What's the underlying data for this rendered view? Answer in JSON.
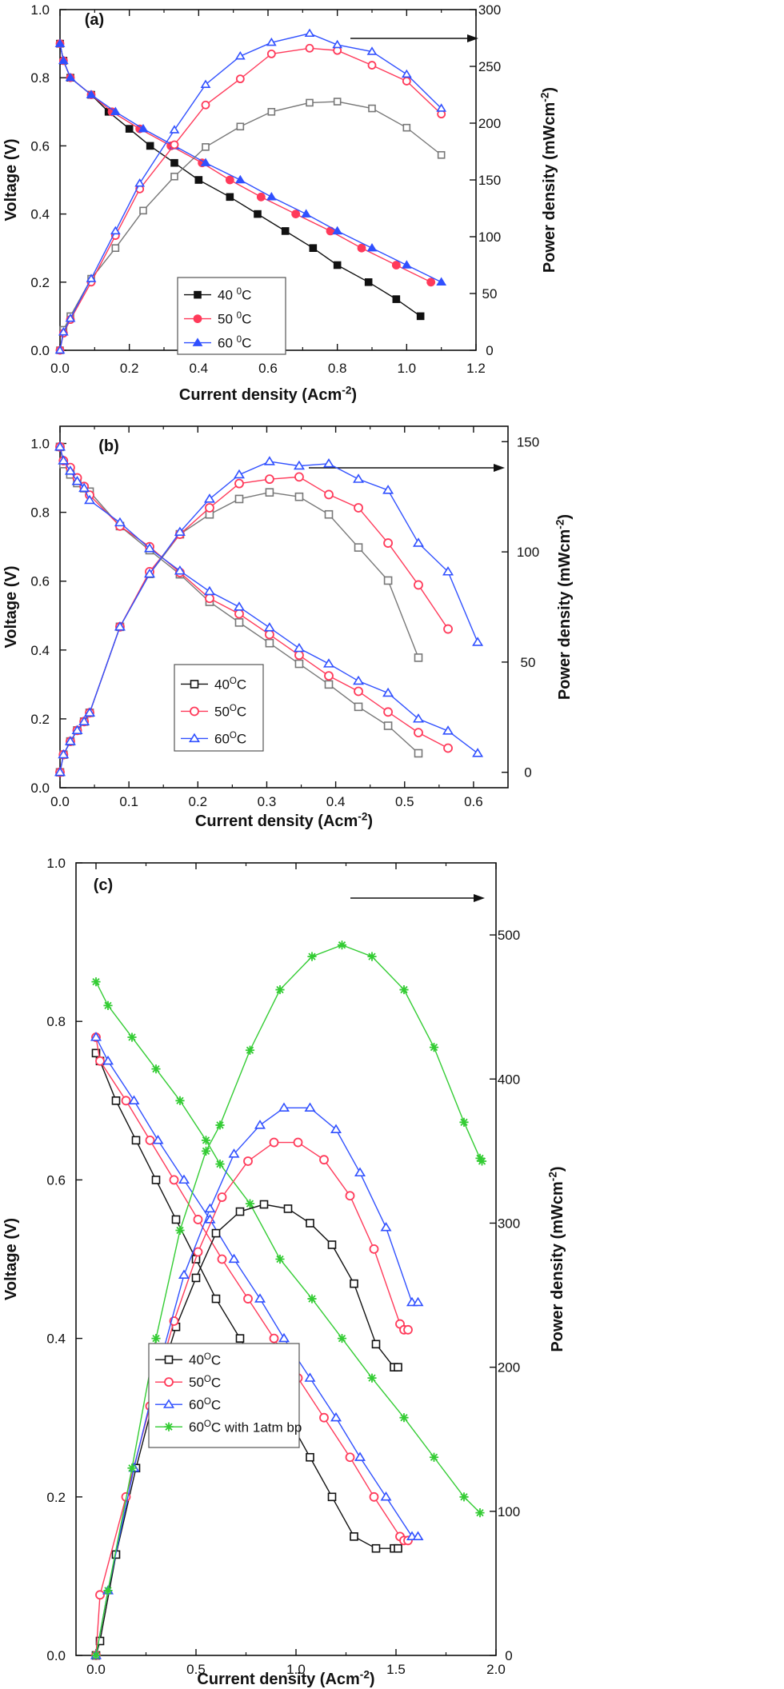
{
  "chart_data": [
    {
      "panel": "(a)",
      "type": "line",
      "xlabel": "Current density (Acm",
      "xlabel_sup": "-2",
      "xlabel_tail": ")",
      "ylabel_left": "Voltage (V)",
      "ylabel_right": "Power density (mWcm",
      "ylabel_right_sup": "-2",
      "ylabel_right_tail": ")",
      "xlim": [
        0,
        1.2
      ],
      "xticks": [
        "0.0",
        "0.2",
        "0.4",
        "0.6",
        "0.8",
        "1.0",
        "1.2"
      ],
      "ylim_left": [
        0,
        1.0
      ],
      "yticks_left": [
        "0.0",
        "0.2",
        "0.4",
        "0.6",
        "0.8",
        "1.0"
      ],
      "ylim_right": [
        0,
        300
      ],
      "yticks_right": [
        "0",
        "50",
        "100",
        "150",
        "200",
        "250",
        "300"
      ],
      "legend": [
        {
          "label": "40 ",
          "sup": "0",
          "tail": "C",
          "color": "#111111",
          "marker": "square-filled"
        },
        {
          "label": "50 ",
          "sup": "0",
          "tail": "C",
          "color": "#ff3a5a",
          "marker": "circle-filled"
        },
        {
          "label": "60 ",
          "sup": "0",
          "tail": "C",
          "color": "#3050ff",
          "marker": "triangle-filled"
        }
      ],
      "series": [
        {
          "name": "40 0C voltage",
          "axis": "left",
          "color": "#111111",
          "marker": "square-filled",
          "x": [
            0,
            0.01,
            0.03,
            0.09,
            0.14,
            0.2,
            0.26,
            0.33,
            0.4,
            0.49,
            0.57,
            0.65,
            0.73,
            0.8,
            0.89,
            0.97,
            1.04
          ],
          "y": [
            0.9,
            0.85,
            0.8,
            0.75,
            0.7,
            0.65,
            0.6,
            0.55,
            0.5,
            0.45,
            0.4,
            0.35,
            0.3,
            0.25,
            0.2,
            0.15,
            0.1
          ]
        },
        {
          "name": "50 0C voltage",
          "axis": "left",
          "color": "#ff3a5a",
          "marker": "circle-filled",
          "x": [
            0,
            0.01,
            0.03,
            0.09,
            0.15,
            0.23,
            0.32,
            0.41,
            0.49,
            0.58,
            0.68,
            0.78,
            0.87,
            0.97,
            1.07
          ],
          "y": [
            0.9,
            0.85,
            0.8,
            0.75,
            0.7,
            0.65,
            0.6,
            0.55,
            0.5,
            0.45,
            0.4,
            0.35,
            0.3,
            0.25,
            0.2
          ]
        },
        {
          "name": "60 0C voltage",
          "axis": "left",
          "color": "#3050ff",
          "marker": "triangle-filled",
          "x": [
            0,
            0.01,
            0.03,
            0.09,
            0.16,
            0.24,
            0.33,
            0.42,
            0.52,
            0.61,
            0.71,
            0.8,
            0.9,
            1.0,
            1.1
          ],
          "y": [
            0.9,
            0.85,
            0.8,
            0.75,
            0.7,
            0.65,
            0.6,
            0.55,
            0.5,
            0.45,
            0.4,
            0.35,
            0.3,
            0.25,
            0.2
          ]
        },
        {
          "name": "40 0C power",
          "axis": "right",
          "color": "#777777",
          "marker": "square-open",
          "x": [
            0,
            0.01,
            0.03,
            0.09,
            0.16,
            0.24,
            0.33,
            0.42,
            0.52,
            0.61,
            0.72,
            0.8,
            0.9,
            1.0,
            1.1
          ],
          "y": [
            0,
            18,
            30,
            63,
            90,
            123,
            153,
            179,
            197,
            210,
            218,
            219,
            213,
            196,
            172
          ]
        },
        {
          "name": "50 0C power",
          "axis": "right",
          "color": "#ff3a5a",
          "marker": "circle-open",
          "x": [
            0,
            0.01,
            0.03,
            0.09,
            0.16,
            0.23,
            0.33,
            0.42,
            0.52,
            0.61,
            0.72,
            0.8,
            0.9,
            1.0,
            1.1
          ],
          "y": [
            0,
            15,
            27,
            60,
            101,
            142,
            181,
            216,
            239,
            261,
            266,
            264,
            251,
            237,
            208
          ]
        },
        {
          "name": "60 0C power",
          "axis": "right",
          "color": "#3050ff",
          "marker": "triangle-open",
          "x": [
            0,
            0.01,
            0.03,
            0.09,
            0.16,
            0.23,
            0.33,
            0.42,
            0.52,
            0.61,
            0.72,
            0.8,
            0.9,
            1.0,
            1.1
          ],
          "y": [
            0,
            16,
            28,
            63,
            105,
            147,
            194,
            234,
            259,
            271,
            279,
            269,
            263,
            243,
            213
          ]
        }
      ]
    },
    {
      "panel": "(b)",
      "type": "line",
      "xlabel": "Current density (Acm",
      "xlabel_sup": "-2",
      "xlabel_tail": ")",
      "ylabel_left": "Voltage (V)",
      "ylabel_right": "Power density (mWcm",
      "ylabel_right_sup": "-2",
      "ylabel_right_tail": ")",
      "xlim": [
        0,
        0.65
      ],
      "xticks": [
        "0.0",
        "0.1",
        "0.2",
        "0.3",
        "0.4",
        "0.5",
        "0.6"
      ],
      "ylim_left": [
        0,
        1.05
      ],
      "yticks_left": [
        "0.0",
        "0.2",
        "0.4",
        "0.6",
        "0.8",
        "1.0"
      ],
      "ylim_right": [
        -7,
        157
      ],
      "yticks_right": [
        "0",
        "50",
        "100",
        "150"
      ],
      "legend": [
        {
          "label": "40",
          "sup": "O",
          "tail": "C",
          "color": "#111111",
          "marker": "square-open"
        },
        {
          "label": "50",
          "sup": "O",
          "tail": "C",
          "color": "#ff3a5a",
          "marker": "circle-open"
        },
        {
          "label": "60",
          "sup": "O",
          "tail": "C",
          "color": "#3050ff",
          "marker": "triangle-open"
        }
      ],
      "series": [
        {
          "name": "40 OC voltage",
          "axis": "left",
          "color": "#777777",
          "marker": "square-open",
          "x": [
            0,
            0.005,
            0.015,
            0.025,
            0.035,
            0.043,
            0.087,
            0.13,
            0.174,
            0.217,
            0.26,
            0.304,
            0.347,
            0.39,
            0.433,
            0.476,
            0.52
          ],
          "y": [
            0.99,
            0.94,
            0.91,
            0.885,
            0.87,
            0.86,
            0.76,
            0.69,
            0.62,
            0.54,
            0.48,
            0.42,
            0.36,
            0.3,
            0.235,
            0.18,
            0.1
          ]
        },
        {
          "name": "50 OC voltage",
          "axis": "left",
          "color": "#ff3a5a",
          "marker": "circle-open",
          "x": [
            0,
            0.005,
            0.015,
            0.025,
            0.035,
            0.043,
            0.087,
            0.13,
            0.174,
            0.217,
            0.26,
            0.304,
            0.347,
            0.39,
            0.433,
            0.476,
            0.52,
            0.563
          ],
          "y": [
            0.99,
            0.95,
            0.93,
            0.9,
            0.875,
            0.85,
            0.76,
            0.7,
            0.625,
            0.55,
            0.505,
            0.445,
            0.385,
            0.325,
            0.28,
            0.22,
            0.16,
            0.115
          ]
        },
        {
          "name": "60 OC voltage",
          "axis": "left",
          "color": "#3050ff",
          "marker": "triangle-open",
          "x": [
            0,
            0.005,
            0.015,
            0.025,
            0.035,
            0.043,
            0.087,
            0.13,
            0.174,
            0.217,
            0.26,
            0.304,
            0.347,
            0.39,
            0.433,
            0.476,
            0.52,
            0.563,
            0.606
          ],
          "y": [
            0.99,
            0.95,
            0.92,
            0.89,
            0.87,
            0.835,
            0.77,
            0.695,
            0.63,
            0.57,
            0.525,
            0.465,
            0.405,
            0.36,
            0.31,
            0.275,
            0.2,
            0.165,
            0.1
          ]
        },
        {
          "name": "40 OC power",
          "axis": "right",
          "color": "#777777",
          "marker": "square-open",
          "x": [
            0,
            0.005,
            0.015,
            0.025,
            0.035,
            0.043,
            0.087,
            0.13,
            0.174,
            0.217,
            0.26,
            0.304,
            0.347,
            0.39,
            0.433,
            0.476,
            0.52
          ],
          "y": [
            0,
            8,
            14,
            19,
            23,
            27,
            66,
            90,
            108,
            117,
            124,
            127,
            125,
            117,
            102,
            87,
            52
          ]
        },
        {
          "name": "50 OC power",
          "axis": "right",
          "color": "#ff3a5a",
          "marker": "circle-open",
          "x": [
            0,
            0.005,
            0.015,
            0.025,
            0.035,
            0.043,
            0.087,
            0.13,
            0.174,
            0.217,
            0.26,
            0.304,
            0.347,
            0.39,
            0.433,
            0.476,
            0.52,
            0.563
          ],
          "y": [
            0,
            8,
            14,
            19,
            23,
            27,
            66,
            91,
            108,
            120,
            131,
            133,
            134,
            126,
            120,
            104,
            85,
            65
          ]
        },
        {
          "name": "60 OC power",
          "axis": "right",
          "color": "#3050ff",
          "marker": "triangle-open",
          "x": [
            0,
            0.005,
            0.015,
            0.025,
            0.035,
            0.043,
            0.087,
            0.13,
            0.174,
            0.217,
            0.26,
            0.304,
            0.347,
            0.39,
            0.433,
            0.476,
            0.52,
            0.563,
            0.606
          ],
          "y": [
            0,
            8,
            14,
            19,
            23,
            27,
            66,
            90,
            109,
            124,
            135,
            141,
            139,
            140,
            133,
            128,
            104,
            91,
            59
          ]
        }
      ]
    },
    {
      "panel": "(c)",
      "type": "line",
      "xlabel": "Current density (Acm",
      "xlabel_sup": "-2",
      "xlabel_tail": ")",
      "ylabel_left": "Voltage (V)",
      "ylabel_right": "Power density (mWcm",
      "ylabel_right_sup": "-2",
      "ylabel_right_tail": ")",
      "xlim": [
        -0.1,
        2.0
      ],
      "xticks": [
        "0.0",
        "0.5",
        "1.0",
        "1.5",
        "2.0"
      ],
      "ylim_left": [
        0,
        1.0
      ],
      "yticks_left": [
        "0.0",
        "0.2",
        "0.4",
        "0.6",
        "0.8",
        "1.0"
      ],
      "ylim_right": [
        0,
        550
      ],
      "yticks_right": [
        "0",
        "100",
        "200",
        "300",
        "400",
        "500"
      ],
      "legend": [
        {
          "label": "40",
          "sup": "O",
          "tail": "C",
          "color": "#111111",
          "marker": "square-open"
        },
        {
          "label": "50",
          "sup": "O",
          "tail": "C",
          "color": "#ff3a5a",
          "marker": "circle-open"
        },
        {
          "label": "60",
          "sup": "O",
          "tail": "C",
          "color": "#3050ff",
          "marker": "triangle-open"
        },
        {
          "label": "60",
          "sup": "O",
          "tail": "C with 1atm bp",
          "color": "#33cc33",
          "marker": "star"
        }
      ],
      "series": [
        {
          "name": "40 OC voltage",
          "axis": "left",
          "color": "#111111",
          "marker": "square-open",
          "x": [
            0,
            0.02,
            0.1,
            0.2,
            0.3,
            0.4,
            0.5,
            0.6,
            0.72,
            0.84,
            0.96,
            1.07,
            1.18,
            1.29,
            1.4,
            1.49,
            1.51
          ],
          "y": [
            0.76,
            0.75,
            0.7,
            0.65,
            0.6,
            0.55,
            0.5,
            0.45,
            0.4,
            0.35,
            0.3,
            0.25,
            0.2,
            0.15,
            0.135,
            0.135,
            0.135
          ]
        },
        {
          "name": "50 OC voltage",
          "axis": "left",
          "color": "#ff3a5a",
          "marker": "circle-open",
          "x": [
            0,
            0.02,
            0.15,
            0.27,
            0.39,
            0.51,
            0.63,
            0.76,
            0.89,
            1.01,
            1.14,
            1.27,
            1.39,
            1.52,
            1.54,
            1.56
          ],
          "y": [
            0.78,
            0.75,
            0.7,
            0.65,
            0.6,
            0.55,
            0.5,
            0.45,
            0.4,
            0.35,
            0.3,
            0.25,
            0.2,
            0.15,
            0.145,
            0.145
          ]
        },
        {
          "name": "60 OC voltage",
          "axis": "left",
          "color": "#3050ff",
          "marker": "triangle-open",
          "x": [
            0,
            0.06,
            0.19,
            0.31,
            0.44,
            0.57,
            0.69,
            0.82,
            0.94,
            1.07,
            1.2,
            1.32,
            1.45,
            1.58,
            1.61
          ],
          "y": [
            0.78,
            0.75,
            0.7,
            0.65,
            0.6,
            0.55,
            0.5,
            0.45,
            0.4,
            0.35,
            0.3,
            0.25,
            0.2,
            0.15,
            0.15
          ]
        },
        {
          "name": "60 OC with 1atm bp voltage",
          "axis": "left",
          "color": "#33cc33",
          "marker": "star",
          "x": [
            0,
            0.06,
            0.18,
            0.3,
            0.42,
            0.55,
            0.62,
            0.77,
            0.92,
            1.08,
            1.23,
            1.38,
            1.54,
            1.69,
            1.84,
            1.92
          ],
          "y": [
            0.85,
            0.82,
            0.78,
            0.74,
            0.7,
            0.65,
            0.62,
            0.57,
            0.5,
            0.45,
            0.4,
            0.35,
            0.3,
            0.25,
            0.2,
            0.18
          ]
        },
        {
          "name": "40 OC power",
          "axis": "right",
          "color": "#111111",
          "marker": "square-open",
          "x": [
            0,
            0.02,
            0.1,
            0.2,
            0.3,
            0.4,
            0.5,
            0.6,
            0.72,
            0.84,
            0.96,
            1.07,
            1.18,
            1.29,
            1.4,
            1.49,
            1.51
          ],
          "y": [
            0,
            10,
            70,
            130,
            183,
            228,
            262,
            293,
            308,
            313,
            310,
            300,
            285,
            258,
            216,
            200,
            200
          ]
        },
        {
          "name": "50 OC power",
          "axis": "right",
          "color": "#ff3a5a",
          "marker": "circle-open",
          "x": [
            0,
            0.02,
            0.15,
            0.27,
            0.39,
            0.51,
            0.63,
            0.76,
            0.89,
            1.01,
            1.14,
            1.27,
            1.39,
            1.52,
            1.54,
            1.56
          ],
          "y": [
            0,
            42,
            110,
            173,
            232,
            280,
            318,
            343,
            356,
            356,
            344,
            319,
            282,
            230,
            226,
            226
          ]
        },
        {
          "name": "60 OC power",
          "axis": "right",
          "color": "#3050ff",
          "marker": "triangle-open",
          "x": [
            0,
            0.06,
            0.19,
            0.31,
            0.44,
            0.57,
            0.69,
            0.82,
            0.94,
            1.07,
            1.2,
            1.32,
            1.45,
            1.58,
            1.61
          ],
          "y": [
            0,
            45,
            130,
            198,
            264,
            310,
            348,
            368,
            380,
            380,
            365,
            335,
            297,
            245,
            245
          ]
        },
        {
          "name": "60 OC with 1atm bp power",
          "axis": "right",
          "color": "#33cc33",
          "marker": "star",
          "x": [
            0,
            0.06,
            0.18,
            0.3,
            0.42,
            0.55,
            0.62,
            0.77,
            0.92,
            1.08,
            1.23,
            1.38,
            1.54,
            1.69,
            1.84,
            1.92,
            1.93
          ],
          "y": [
            0,
            45,
            130,
            220,
            295,
            350,
            368,
            420,
            462,
            485,
            493,
            485,
            462,
            422,
            370,
            345,
            343
          ]
        }
      ]
    }
  ]
}
